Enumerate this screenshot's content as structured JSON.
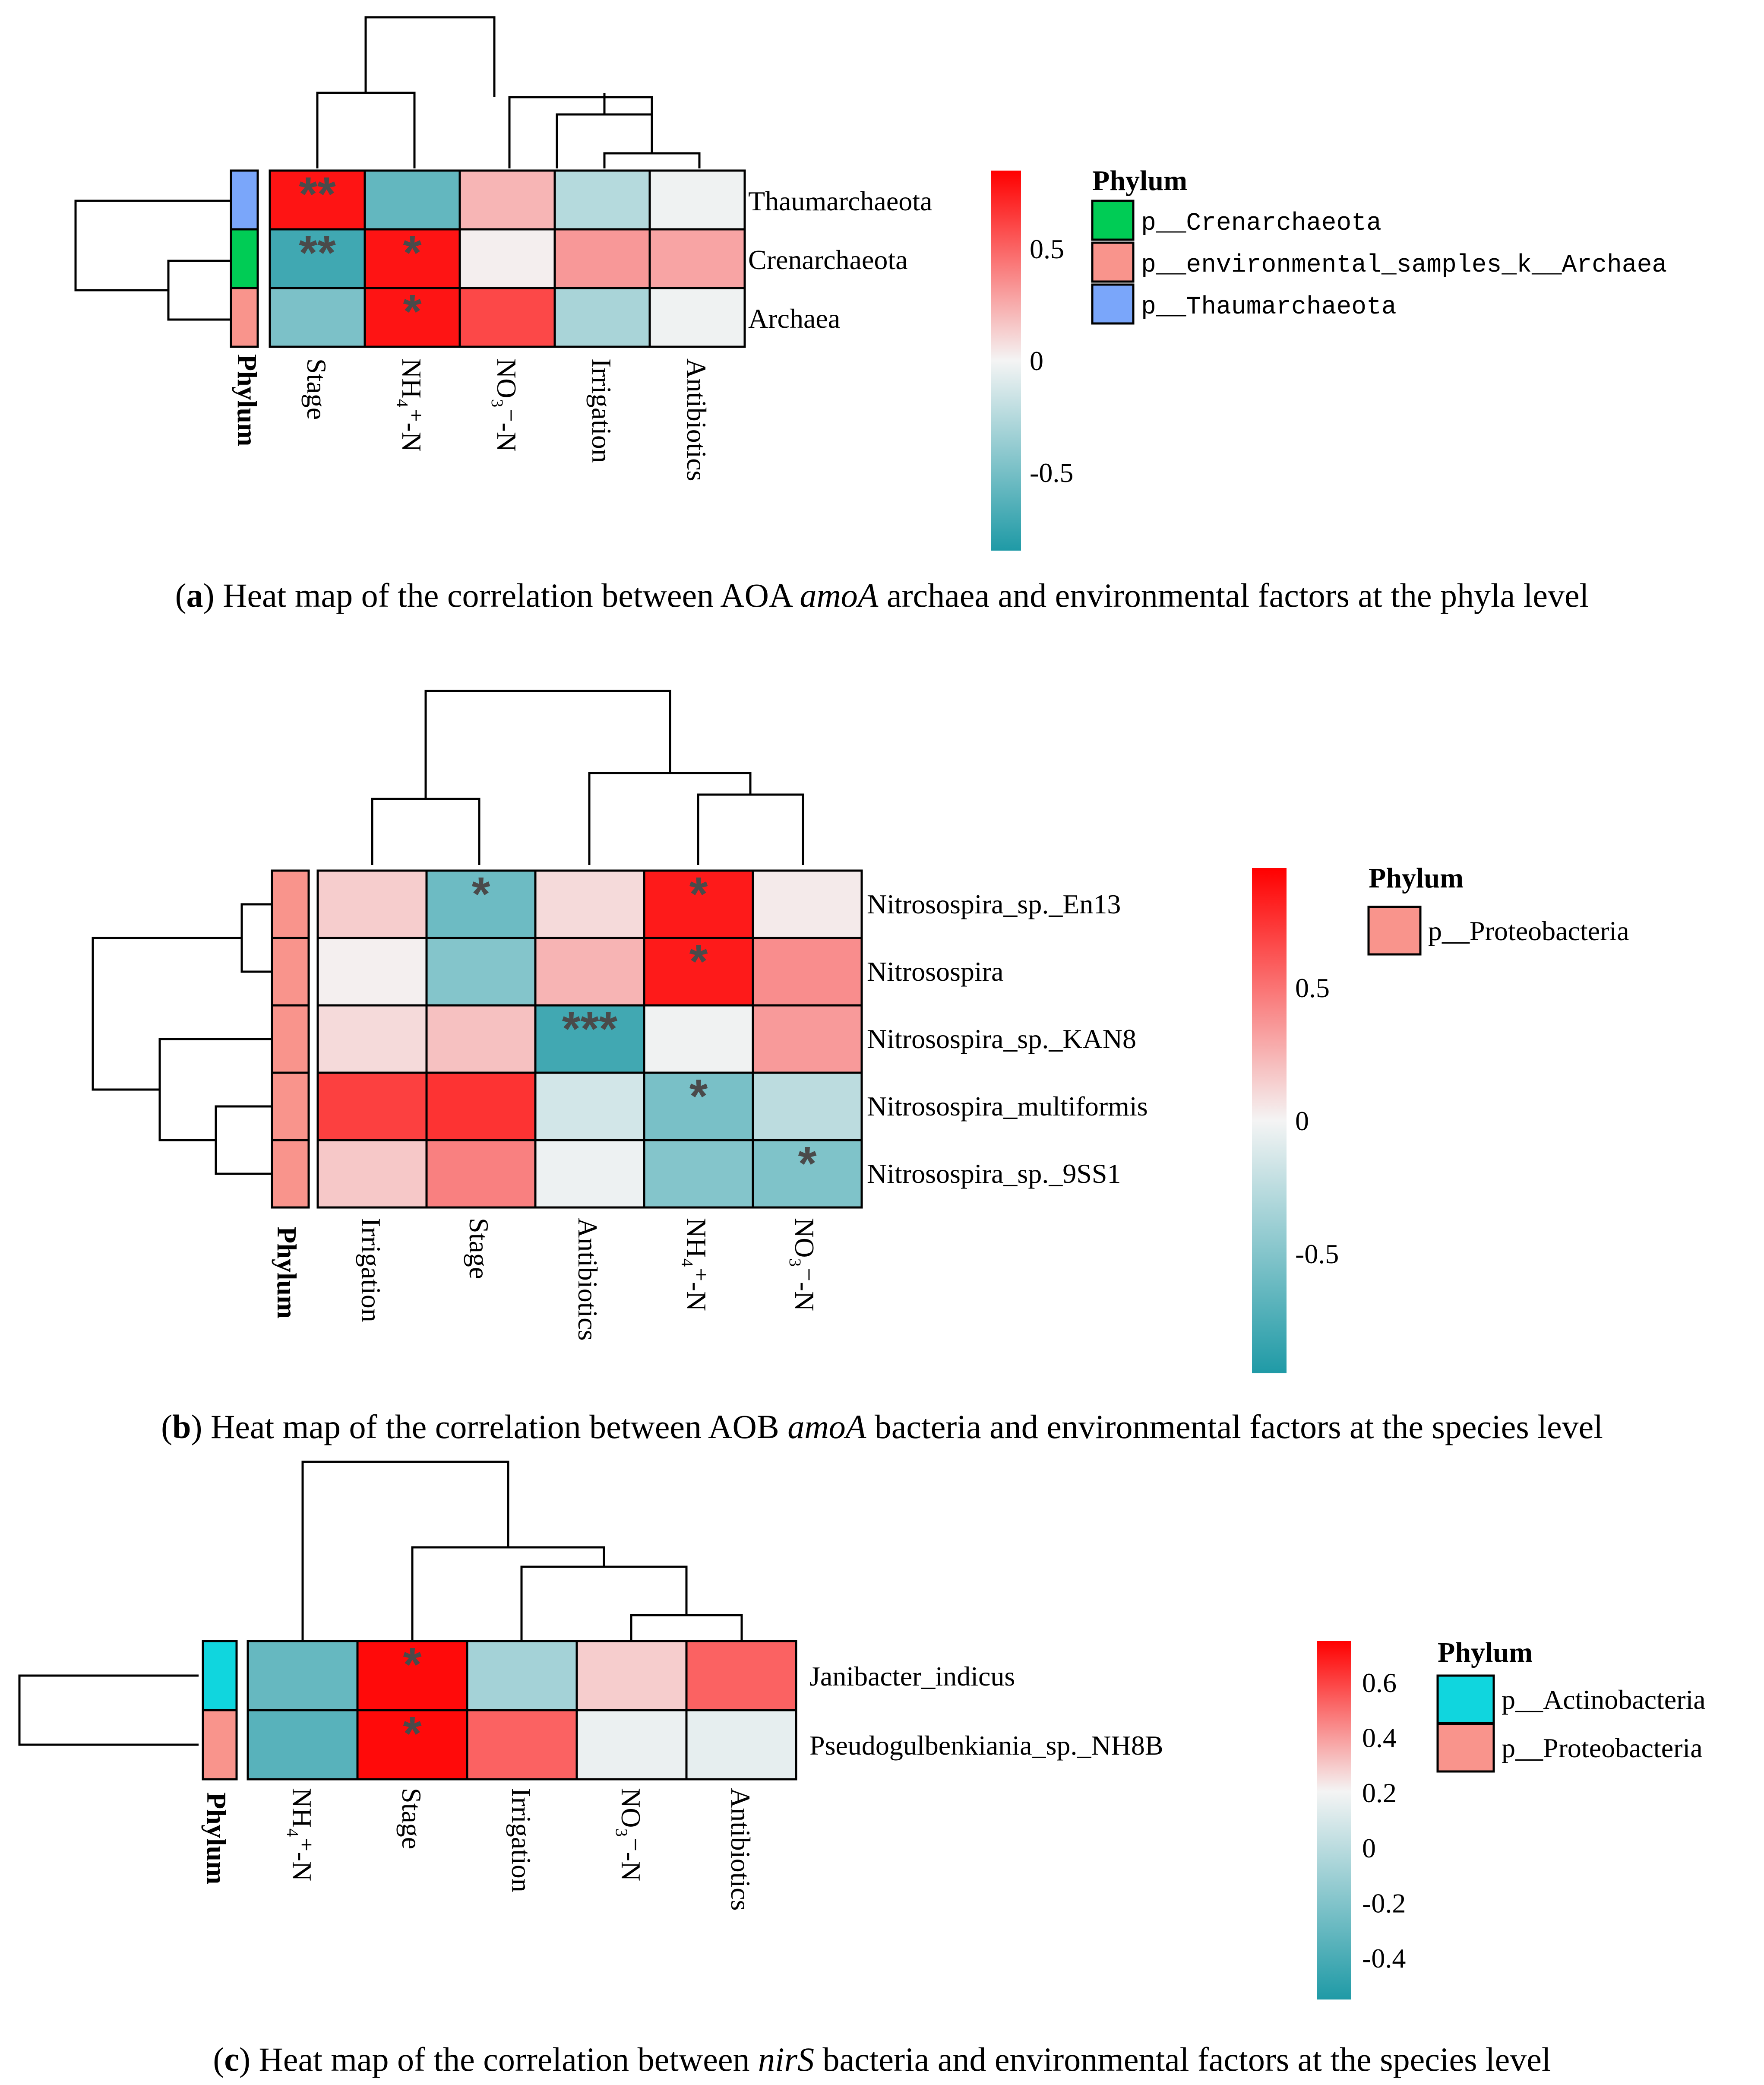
{
  "colors": {
    "high": "#ff0000",
    "mid": "#f4f4f4",
    "low": "#1f9aa6",
    "cell_border": "#000000",
    "star": "#4a4a4a"
  },
  "chart_data": [
    {
      "type": "heatmap",
      "id": "a",
      "caption": {
        "label": "a",
        "before": "Heat map of the correlation between AOA ",
        "gene": "amoA",
        "after": " archaea and environmental factors at the phyla level"
      },
      "rows": [
        "Thaumarchaeota",
        "Crenarchaeota",
        "Archaea"
      ],
      "columns": [
        "Stage",
        "NH₄⁺-N",
        "NO₃⁻-N",
        "Irrigation",
        "Antibiotics"
      ],
      "values": [
        [
          0.78,
          -0.58,
          0.22,
          -0.25,
          -0.02
        ],
        [
          -0.72,
          0.78,
          0.02,
          0.32,
          0.28
        ],
        [
          -0.48,
          0.78,
          0.6,
          -0.3,
          -0.02
        ]
      ],
      "significance": [
        [
          "**",
          "",
          "",
          "",
          ""
        ],
        [
          "**",
          "*",
          "",
          "",
          ""
        ],
        [
          "",
          "*",
          "",
          "",
          ""
        ]
      ],
      "phylum_annotation_label": "Phylum",
      "row_phylum": [
        "p__Thaumarchaeota",
        "p__Crenarchaeota",
        "p__environmental_samples_k__Archaea"
      ],
      "colorbar": {
        "min": -0.85,
        "max": 0.85,
        "ticks": [
          0.5,
          0,
          -0.5
        ],
        "tick_labels": [
          "0.5",
          "0",
          "-0.5"
        ]
      },
      "legend": {
        "title": "Phylum",
        "entries": [
          {
            "label": "p__Crenarchaeota",
            "color": "#00cc55"
          },
          {
            "label": "p__environmental_samples_k__Archaea",
            "color": "#f9948c"
          },
          {
            "label": "p__Thaumarchaeota",
            "color": "#7aa6fa"
          }
        ]
      }
    },
    {
      "type": "heatmap",
      "id": "b",
      "caption": {
        "label": "b",
        "before": "Heat map of the correlation between AOB ",
        "gene": "amoA",
        "after": " bacteria and environmental factors at the species level"
      },
      "rows": [
        "Nitrosospira_sp._En13",
        "Nitrosospira",
        "Nitrosospira_sp._KAN8",
        "Nitrosospira_multiformis",
        "Nitrosospira_sp._9SS1"
      ],
      "columns": [
        "Irrigation",
        "Stage",
        "Antibiotics",
        "NH₄⁺-N",
        "NO₃⁻-N"
      ],
      "values": [
        [
          0.15,
          -0.6,
          0.1,
          0.85,
          0.04
        ],
        [
          0.02,
          -0.5,
          0.25,
          0.85,
          0.4
        ],
        [
          0.1,
          0.2,
          -0.8,
          -0.02,
          0.35
        ],
        [
          0.7,
          0.75,
          -0.15,
          -0.55,
          -0.25
        ],
        [
          0.17,
          0.45,
          -0.03,
          -0.5,
          -0.52
        ]
      ],
      "significance": [
        [
          "",
          "*",
          "",
          "*",
          ""
        ],
        [
          "",
          "",
          "",
          "*",
          ""
        ],
        [
          "",
          "",
          "***",
          "",
          ""
        ],
        [
          "",
          "",
          "",
          "*",
          ""
        ],
        [
          "",
          "",
          "",
          "",
          "*"
        ]
      ],
      "phylum_annotation_label": "Phylum",
      "row_phylum": [
        "p__Proteobacteria",
        "p__Proteobacteria",
        "p__Proteobacteria",
        "p__Proteobacteria",
        "p__Proteobacteria"
      ],
      "colorbar": {
        "min": -0.95,
        "max": 0.95,
        "ticks": [
          0.5,
          0,
          -0.5
        ],
        "tick_labels": [
          "0.5",
          "0",
          "-0.5"
        ]
      },
      "legend": {
        "title": "Phylum",
        "entries": [
          {
            "label": "p__Proteobacteria",
            "color": "#f9948c"
          }
        ]
      }
    },
    {
      "type": "heatmap",
      "id": "c",
      "caption": {
        "label": "c",
        "before": "Heat map of the correlation between ",
        "gene": "nirS",
        "after": " bacteria and environmental factors at the species level"
      },
      "rows": [
        "Janibacter_indicus",
        "Pseudogulbenkiania_sp._NH8B"
      ],
      "columns": [
        "NH₄⁺-N",
        "Stage",
        "Irrigation",
        "NO₃⁻-N",
        "Antibiotics"
      ],
      "values": [
        [
          -0.5,
          0.72,
          -0.28,
          0.12,
          0.45
        ],
        [
          -0.55,
          0.72,
          0.45,
          -0.03,
          -0.05
        ]
      ],
      "significance": [
        [
          "",
          "*",
          "",
          "",
          ""
        ],
        [
          "",
          "*",
          "",
          "",
          ""
        ]
      ],
      "phylum_annotation_label": "Phylum",
      "row_phylum": [
        "p__Actinobacteria",
        "p__Proteobacteria"
      ],
      "colorbar": {
        "min": -0.55,
        "max": 0.75,
        "ticks": [
          0.6,
          0.4,
          0.2,
          0,
          -0.2,
          -0.4
        ],
        "tick_labels": [
          "0.6",
          "0.4",
          "0.2",
          "0",
          "-0.2",
          "-0.4"
        ]
      },
      "legend": {
        "title": "Phylum",
        "entries": [
          {
            "label": "p__Actinobacteria",
            "color": "#10d6de"
          },
          {
            "label": "p__Proteobacteria",
            "color": "#f9948c"
          }
        ]
      }
    }
  ]
}
